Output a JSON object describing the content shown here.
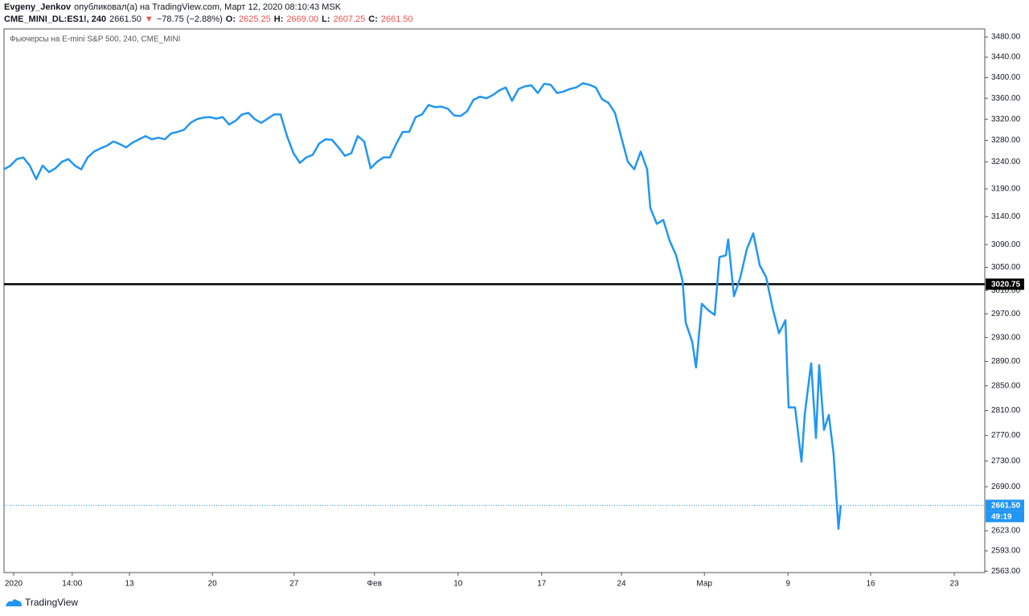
{
  "header": {
    "line1": [
      {
        "text": "Evgeny_Jenkov",
        "bold": true
      },
      {
        "text": "опубликовал(а) на TradingView.com, Март 12, 2020 08:10:43 MSK",
        "bold": false
      }
    ],
    "line2": [
      {
        "text": "CME_MINI_DL:ES1!, 240",
        "bold": true,
        "color": "#131722"
      },
      {
        "text": "2661.50",
        "bold": false,
        "color": "#131722"
      },
      {
        "text": "▼",
        "bold": false,
        "color": "#ef5350"
      },
      {
        "text": "−78.75 (−2.88%)",
        "bold": false,
        "color": "#131722"
      },
      {
        "text": "O:",
        "bold": true,
        "color": "#131722"
      },
      {
        "text": "2625.25",
        "bold": false,
        "color": "#ef5350"
      },
      {
        "text": "H:",
        "bold": true,
        "color": "#131722"
      },
      {
        "text": "2669.00",
        "bold": false,
        "color": "#ef5350"
      },
      {
        "text": "L:",
        "bold": true,
        "color": "#131722"
      },
      {
        "text": "2607.25",
        "bold": false,
        "color": "#ef5350"
      },
      {
        "text": "C:",
        "bold": true,
        "color": "#131722"
      },
      {
        "text": "2661.50",
        "bold": false,
        "color": "#ef5350"
      }
    ]
  },
  "chart_data": {
    "type": "line",
    "title": "Фьючерсы на E-mini S&P 500, 240, CME_MINI",
    "log": true,
    "xlim": [
      0,
      152.5
    ],
    "ylim": [
      2561,
      3496
    ],
    "xticks": [
      {
        "value": 1.5,
        "label": "2020"
      },
      {
        "value": 10.6,
        "label": "14:00"
      },
      {
        "value": 19.5,
        "label": "13"
      },
      {
        "value": 32.4,
        "label": "20"
      },
      {
        "value": 45.1,
        "label": "27"
      },
      {
        "value": 57.6,
        "label": "Фев"
      },
      {
        "value": 70.6,
        "label": "10"
      },
      {
        "value": 83.6,
        "label": "17"
      },
      {
        "value": 96,
        "label": "24"
      },
      {
        "value": 108.9,
        "label": "Мар"
      },
      {
        "value": 121.9,
        "label": "9"
      },
      {
        "value": 134.75,
        "label": "16"
      },
      {
        "value": 147.75,
        "label": "23"
      }
    ],
    "yticks": [
      {
        "value": 3480,
        "label": "3480.00"
      },
      {
        "value": 3440,
        "label": "3440.00"
      },
      {
        "value": 3400,
        "label": "3400.00"
      },
      {
        "value": 3360,
        "label": "3360.00"
      },
      {
        "value": 3320,
        "label": "3320.00"
      },
      {
        "value": 3280,
        "label": "3280.00"
      },
      {
        "value": 3240,
        "label": "3240.00"
      },
      {
        "value": 3190,
        "label": "3190.00"
      },
      {
        "value": 3140,
        "label": "3140.00"
      },
      {
        "value": 3090,
        "label": "3090.00"
      },
      {
        "value": 3050,
        "label": "3050.00"
      },
      {
        "value": 3010,
        "label": "3010.00"
      },
      {
        "value": 2970,
        "label": "2970.00"
      },
      {
        "value": 2930,
        "label": "2930.00"
      },
      {
        "value": 2890,
        "label": "2890.00"
      },
      {
        "value": 2850,
        "label": "2850.00"
      },
      {
        "value": 2810,
        "label": "2810.00"
      },
      {
        "value": 2770,
        "label": "2770.00"
      },
      {
        "value": 2730,
        "label": "2730.00"
      },
      {
        "value": 2690,
        "label": "2690.00"
      },
      {
        "value": 2623,
        "label": "2623.00"
      },
      {
        "value": 2593,
        "label": "2593.00"
      },
      {
        "value": 2563,
        "label": "2563.00"
      }
    ],
    "series": [
      {
        "color": "#2196f3",
        "x": [
          0,
          1,
          2,
          3,
          4,
          5,
          6,
          7,
          8,
          9,
          10,
          11,
          12,
          13,
          14,
          15,
          16,
          17,
          18,
          19,
          20,
          21,
          22,
          23,
          24,
          25,
          26,
          27,
          28,
          29,
          30,
          31,
          32,
          33,
          34,
          35,
          36,
          37,
          38,
          39,
          40,
          41,
          42,
          43,
          44,
          45,
          46,
          47,
          48,
          49,
          50,
          51,
          52,
          53,
          54,
          55,
          56,
          57,
          58,
          59,
          60,
          61,
          62,
          63,
          64,
          65,
          66,
          67,
          68,
          69,
          70,
          71,
          72,
          73,
          74,
          75,
          76,
          77,
          78,
          79,
          80,
          81,
          82,
          83,
          84,
          85,
          86,
          87,
          88,
          89,
          90,
          91,
          92,
          93,
          94,
          95,
          96,
          97,
          98,
          99,
          100,
          100.5,
          101.5,
          102.5,
          103.5,
          104.5,
          105.5,
          106,
          107,
          107.6,
          108.5,
          109.5,
          110.5,
          111.25,
          112.25,
          112.6,
          113.5,
          114.5,
          115.5,
          116.5,
          117.5,
          118.5,
          119.5,
          120.5,
          121.5,
          122,
          123,
          124,
          124.5,
          125.5,
          126.25,
          126.75,
          127.5,
          128.25,
          129,
          129.75,
          130.1
        ],
        "values": [
          3226,
          3233,
          3245,
          3248,
          3233,
          3208,
          3233,
          3221,
          3228,
          3240,
          3245,
          3233,
          3226,
          3248,
          3259,
          3265,
          3270,
          3278,
          3273,
          3267,
          3276,
          3282,
          3288,
          3282,
          3285,
          3282,
          3293,
          3296,
          3300,
          3313,
          3320,
          3323,
          3324,
          3321,
          3324,
          3310,
          3317,
          3329,
          3332,
          3320,
          3313,
          3321,
          3329,
          3329,
          3288,
          3256,
          3238,
          3248,
          3253,
          3274,
          3282,
          3281,
          3267,
          3251,
          3256,
          3288,
          3278,
          3228,
          3240,
          3248,
          3248,
          3274,
          3296,
          3296,
          3324,
          3329,
          3347,
          3343,
          3344,
          3340,
          3327,
          3326,
          3335,
          3357,
          3363,
          3360,
          3366,
          3375,
          3381,
          3355,
          3378,
          3383,
          3385,
          3370,
          3388,
          3386,
          3370,
          3373,
          3378,
          3381,
          3389,
          3386,
          3381,
          3358,
          3351,
          3332,
          3285,
          3240,
          3226,
          3259,
          3226,
          3155,
          3127,
          3134,
          3097,
          3071,
          3027,
          2955,
          2923,
          2880,
          2987,
          2976,
          2968,
          3068,
          3071,
          3099,
          3000,
          3033,
          3082,
          3110,
          3054,
          3033,
          2980,
          2937,
          2959,
          2815,
          2815,
          2729,
          2803,
          2887,
          2766,
          2884,
          2779,
          2803,
          2740,
          2626,
          2661.5
        ]
      }
    ],
    "price_lines": [
      {
        "value": 3020.75,
        "color": "#000000",
        "dashed": false
      },
      {
        "value": 2661.5,
        "label": "2661.50",
        "color": "#2196f3",
        "dashed": true,
        "timer": "49:19"
      }
    ]
  },
  "footer": {
    "brand": "TradingView"
  }
}
